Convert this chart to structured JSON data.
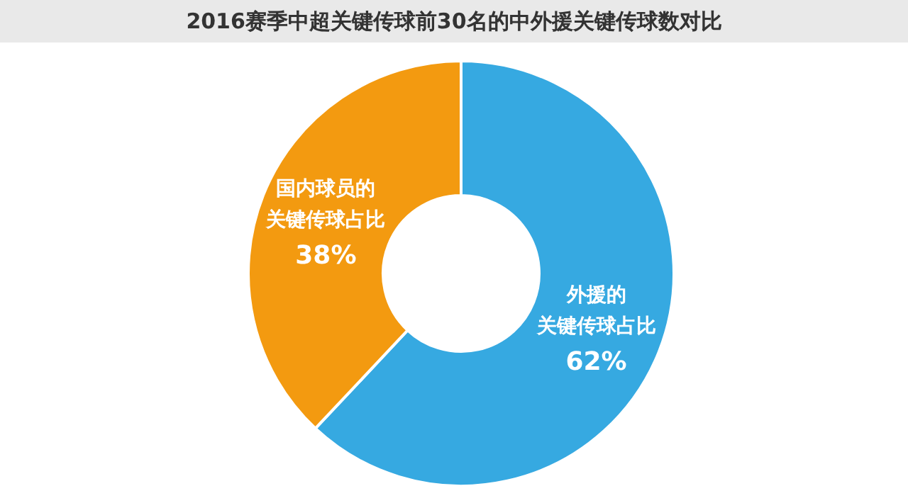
{
  "chart_data": {
    "type": "donut",
    "title": "2016赛季中超关键传球前30名的中外援关键传球数对比",
    "categories": [
      "外援的关键传球占比",
      "国内球员的关键传球占比"
    ],
    "values": [
      62,
      38
    ],
    "value_labels": [
      "62%",
      "38%"
    ],
    "colors": [
      "#36a9e1",
      "#f39a10"
    ]
  }
}
